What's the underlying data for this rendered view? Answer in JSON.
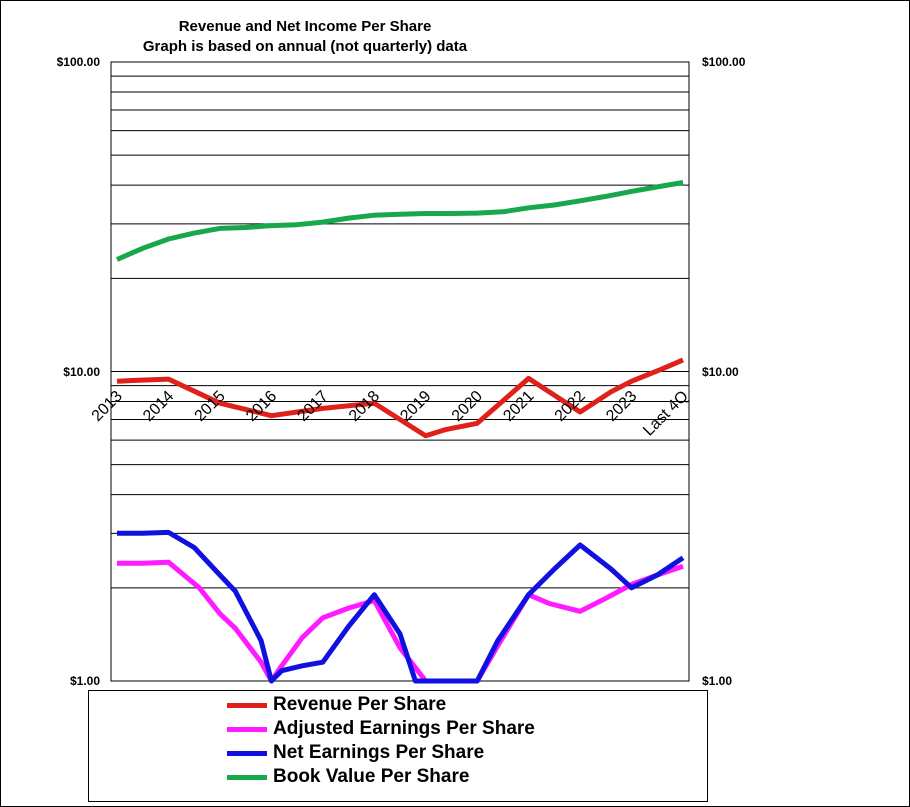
{
  "chart_data": {
    "type": "line",
    "title": "Revenue  and Net Income  Per Share",
    "subtitle": "Graph is based on annual  (not quarterly) data",
    "y_scale": "log",
    "ylim": [
      1,
      100
    ],
    "y_ticks": [
      {
        "value": 100,
        "label": "$100.00"
      },
      {
        "value": 10,
        "label": "$10.00"
      },
      {
        "value": 1,
        "label": "$1.00"
      }
    ],
    "grid": true,
    "legend_position": "bottom",
    "categories": [
      "2013",
      "2014",
      "2015",
      "2016",
      "2017",
      "2018",
      "2019",
      "2020",
      "2021",
      "2022",
      "2023",
      "Last 4Q"
    ],
    "series": [
      {
        "name": "Revenue Per Share",
        "color": "#e0201b",
        "x": [
          0,
          0.3,
          1.0,
          2.0,
          3.0,
          4.0,
          5.0,
          6.0,
          6.4,
          7.0,
          8.0,
          9.0,
          9.6,
          10.0,
          10.6,
          11.0
        ],
        "values": [
          9.3,
          9.35,
          9.45,
          7.9,
          7.2,
          7.6,
          7.9,
          6.2,
          6.5,
          6.8,
          9.5,
          7.4,
          8.6,
          9.3,
          10.2,
          10.9
        ]
      },
      {
        "name": "Adjusted Earnings Per Share",
        "color": "#ff1aff",
        "x": [
          0,
          0.5,
          1.0,
          1.6,
          2.0,
          2.3,
          2.8,
          3.0,
          3.2,
          3.6,
          4.0,
          4.5,
          5.0,
          5.5,
          6.0,
          6.3,
          6.6,
          7.0,
          7.4,
          8.0,
          8.4,
          9.0,
          9.5,
          10.0,
          10.5,
          11.0
        ],
        "values": [
          2.4,
          2.4,
          2.42,
          2.0,
          1.65,
          1.48,
          1.15,
          1.0,
          1.12,
          1.38,
          1.6,
          1.72,
          1.82,
          1.28,
          1.0,
          1.0,
          1.0,
          1.0,
          1.3,
          1.9,
          1.78,
          1.68,
          1.85,
          2.05,
          2.2,
          2.35
        ]
      },
      {
        "name": "Net Earnings Per Share",
        "color": "#1010e0",
        "x": [
          0,
          0.5,
          1.0,
          1.5,
          2.0,
          2.3,
          2.8,
          3.0,
          3.2,
          3.6,
          4.0,
          4.5,
          5.0,
          5.5,
          5.8,
          6.0,
          6.3,
          6.6,
          7.0,
          7.4,
          8.0,
          8.5,
          9.0,
          9.6,
          10.0,
          10.5,
          11.0
        ],
        "values": [
          3.0,
          3.0,
          3.02,
          2.7,
          2.2,
          1.95,
          1.35,
          1.0,
          1.08,
          1.12,
          1.15,
          1.5,
          1.9,
          1.42,
          1.0,
          1.0,
          1.0,
          1.0,
          1.0,
          1.35,
          1.9,
          2.3,
          2.75,
          2.3,
          2.0,
          2.2,
          2.5
        ]
      },
      {
        "name": "Book Value Per Share",
        "color": "#16a84a",
        "x": [
          0,
          0.5,
          1.0,
          1.5,
          2.0,
          2.5,
          3.0,
          3.5,
          4.0,
          4.5,
          5.0,
          5.5,
          6.0,
          6.5,
          7.0,
          7.5,
          8.0,
          8.5,
          9.0,
          9.5,
          10.0,
          10.5,
          11.0
        ],
        "values": [
          23.0,
          25.0,
          26.8,
          28.0,
          29.0,
          29.2,
          29.6,
          29.8,
          30.4,
          31.3,
          32.0,
          32.2,
          32.4,
          32.4,
          32.5,
          32.8,
          33.8,
          34.5,
          35.6,
          36.8,
          38.2,
          39.5,
          40.8
        ]
      }
    ]
  }
}
